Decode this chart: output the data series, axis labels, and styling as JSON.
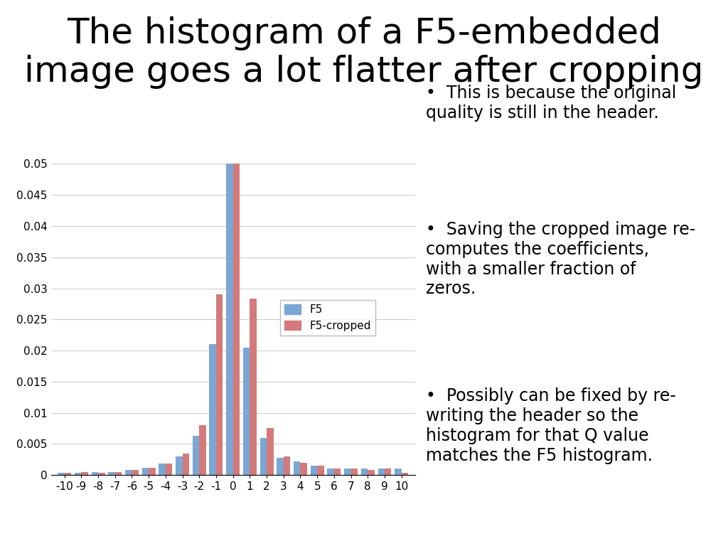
{
  "title": "The histogram of a F5-embedded\nimage goes a lot flatter after cropping",
  "title_fontsize": 36,
  "categories": [
    -10,
    -9,
    -8,
    -7,
    -6,
    -5,
    -4,
    -3,
    -2,
    -1,
    0,
    1,
    2,
    3,
    4,
    5,
    6,
    7,
    8,
    9,
    10
  ],
  "f5": [
    0.0004,
    0.0004,
    0.0005,
    0.0005,
    0.0008,
    0.0012,
    0.0018,
    0.003,
    0.0063,
    0.021,
    0.05,
    0.0205,
    0.006,
    0.0028,
    0.0022,
    0.0015,
    0.001,
    0.001,
    0.001,
    0.001,
    0.001
  ],
  "f5_cropped": [
    0.0004,
    0.0005,
    0.0004,
    0.0005,
    0.0008,
    0.0012,
    0.0018,
    0.0035,
    0.008,
    0.029,
    0.05,
    0.0283,
    0.0075,
    0.003,
    0.002,
    0.0015,
    0.001,
    0.001,
    0.0008,
    0.001,
    0.0004
  ],
  "f5_color": "#7ba7d4",
  "f5_cropped_color": "#d47a7a",
  "ylim": [
    0,
    0.05
  ],
  "yticks": [
    0,
    0.005,
    0.01,
    0.015,
    0.02,
    0.025,
    0.03,
    0.035,
    0.04,
    0.045,
    0.05
  ],
  "bar_width": 0.4,
  "figsize": [
    10.24,
    7.68
  ],
  "dpi": 100,
  "bullet_points": [
    "This is because the original\nquality is still in the header.",
    "Saving the cropped image re-\ncomputes the coefficients,\nwith a smaller fraction of\nzeros.",
    "Possibly can be fixed by re-\nwriting the header so the\nhistogram for that Q value\nmatches the F5 histogram."
  ],
  "bullet_fontsize": 17,
  "grid_color": "#cccccc",
  "background_color": "#ffffff"
}
